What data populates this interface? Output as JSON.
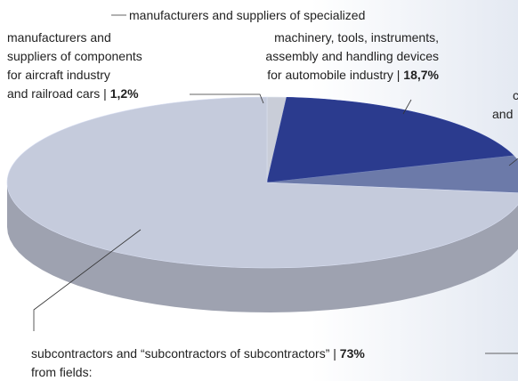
{
  "chart_data": {
    "type": "pie",
    "categories": [
      [
        "manufacturers and",
        "suppliers of components",
        "for aircraft industry",
        "and railroad cars |"
      ],
      [
        "manufacturers and suppliers of specialized",
        "machinery, tools, instruments,",
        "assembly and handling devices",
        "for automobile industry |"
      ],
      [
        "c",
        "and"
      ],
      [
        "subcontractors and “subcontractors of subcontractors” |",
        "from fields:"
      ]
    ],
    "values": [
      1.2,
      18.7,
      7.1,
      73
    ],
    "value_labels": [
      "1,2%",
      "18,7%",
      null,
      "73%"
    ],
    "colors": [
      "#c9cdd8",
      "#2b3b8e",
      "#6c7aa9",
      "#c5cbdc"
    ]
  }
}
